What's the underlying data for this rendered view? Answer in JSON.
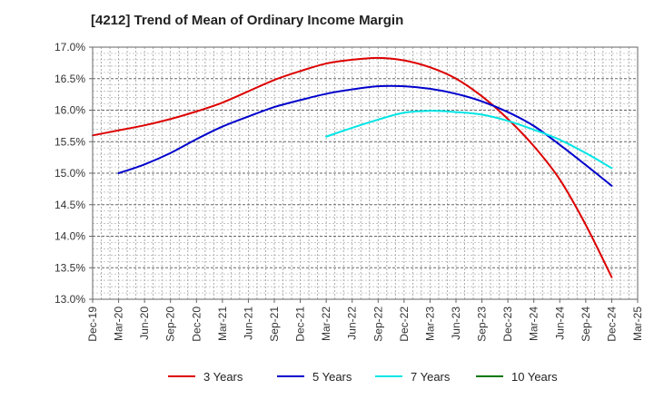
{
  "chart_data": {
    "type": "line",
    "title": "[4212]  Trend of Mean of Ordinary Income Margin",
    "xlabel": "",
    "ylabel": "",
    "ylim": [
      13.0,
      17.0
    ],
    "y_ticks": [
      "13.0%",
      "13.5%",
      "14.0%",
      "14.5%",
      "15.0%",
      "15.5%",
      "16.0%",
      "16.5%",
      "17.0%"
    ],
    "x_ticks": [
      "Dec-19",
      "Mar-20",
      "Jun-20",
      "Sep-20",
      "Dec-20",
      "Mar-21",
      "Jun-21",
      "Sep-21",
      "Dec-21",
      "Mar-22",
      "Jun-22",
      "Sep-22",
      "Dec-22",
      "Mar-23",
      "Jun-23",
      "Sep-23",
      "Dec-23",
      "Mar-24",
      "Jun-24",
      "Sep-24",
      "Dec-24",
      "Mar-25"
    ],
    "grid": true,
    "legend_position": "bottom",
    "series": [
      {
        "name": "3 Years",
        "color": "#dd0000",
        "points": [
          [
            "Dec-19",
            15.6
          ],
          [
            "Mar-20",
            15.68
          ],
          [
            "Jun-20",
            15.76
          ],
          [
            "Sep-20",
            15.86
          ],
          [
            "Dec-20",
            15.98
          ],
          [
            "Mar-21",
            16.12
          ],
          [
            "Jun-21",
            16.3
          ],
          [
            "Sep-21",
            16.48
          ],
          [
            "Dec-21",
            16.62
          ],
          [
            "Mar-22",
            16.74
          ],
          [
            "Jun-22",
            16.8
          ],
          [
            "Sep-22",
            16.83
          ],
          [
            "Dec-22",
            16.79
          ],
          [
            "Mar-23",
            16.68
          ],
          [
            "Jun-23",
            16.5
          ],
          [
            "Sep-23",
            16.22
          ],
          [
            "Dec-23",
            15.86
          ],
          [
            "Mar-24",
            15.43
          ],
          [
            "Jun-24",
            14.9
          ],
          [
            "Sep-24",
            14.18
          ],
          [
            "Dec-24",
            13.35
          ]
        ]
      },
      {
        "name": "5 Years",
        "color": "#0000cc",
        "points": [
          [
            "Mar-20",
            15.0
          ],
          [
            "Jun-20",
            15.14
          ],
          [
            "Sep-20",
            15.32
          ],
          [
            "Dec-20",
            15.54
          ],
          [
            "Mar-21",
            15.74
          ],
          [
            "Jun-21",
            15.9
          ],
          [
            "Sep-21",
            16.05
          ],
          [
            "Dec-21",
            16.16
          ],
          [
            "Mar-22",
            16.26
          ],
          [
            "Jun-22",
            16.33
          ],
          [
            "Sep-22",
            16.38
          ],
          [
            "Dec-22",
            16.38
          ],
          [
            "Mar-23",
            16.34
          ],
          [
            "Jun-23",
            16.26
          ],
          [
            "Sep-23",
            16.14
          ],
          [
            "Dec-23",
            15.97
          ],
          [
            "Mar-24",
            15.75
          ],
          [
            "Jun-24",
            15.45
          ],
          [
            "Sep-24",
            15.13
          ],
          [
            "Dec-24",
            14.8
          ]
        ]
      },
      {
        "name": "7 Years",
        "color": "#00e5e5",
        "points": [
          [
            "Mar-22",
            15.58
          ],
          [
            "Jun-22",
            15.72
          ],
          [
            "Sep-22",
            15.85
          ],
          [
            "Dec-22",
            15.96
          ],
          [
            "Mar-23",
            15.99
          ],
          [
            "Jun-23",
            15.97
          ],
          [
            "Sep-23",
            15.93
          ],
          [
            "Dec-23",
            15.83
          ],
          [
            "Mar-24",
            15.69
          ],
          [
            "Jun-24",
            15.53
          ],
          [
            "Sep-24",
            15.32
          ],
          [
            "Dec-24",
            15.08
          ]
        ]
      },
      {
        "name": "10 Years",
        "color": "#007700",
        "points": []
      }
    ]
  }
}
